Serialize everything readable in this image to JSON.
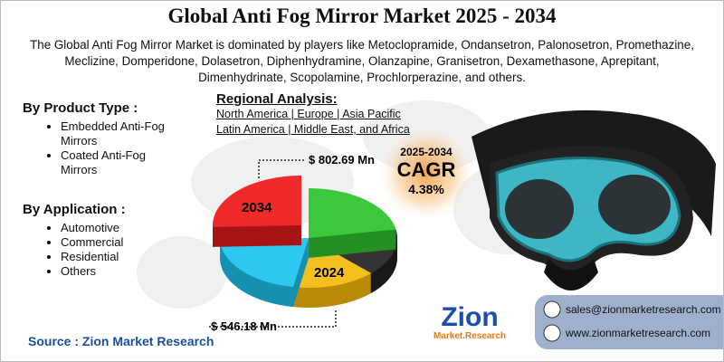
{
  "title": "Global Anti Fog Mirror Market 2025 - 2034",
  "description": "The Global Anti Fog Mirror Market is dominated by players like Metoclopramide, Ondansetron, Palonosetron, Promethazine, Meclizine, Domperidone, Dolasetron, Diphenhydramine, Olanzapine, Granisetron, Dexamethasone, Aprepitant, Dimenhydrinate, Scopolamine, Prochlorperazine, and others.",
  "product_type": {
    "heading": "By Product Type  :",
    "items": [
      "Embedded Anti-Fog Mirrors",
      "Coated Anti-Fog Mirrors"
    ]
  },
  "application": {
    "heading": "By Application :",
    "items": [
      "Automotive",
      "Commercial",
      "Residential",
      "Others"
    ]
  },
  "regional": {
    "heading": "Regional Analysis:",
    "lines": [
      "North America | Europe | Asia Pacific",
      "Latin America | Middle East, and Africa"
    ]
  },
  "pie": {
    "label_2034": "2034",
    "value_2034": "$ 802.69 Mn",
    "label_2024": "2024",
    "value_2024": "$ 546.18 Mn"
  },
  "cagr": {
    "period": "2025-2034",
    "label": "CAGR",
    "value": "4.38%"
  },
  "source": "Source : Zion Market Research",
  "logo": {
    "name": "Zion",
    "sub": "Market.Research"
  },
  "contact": {
    "email": "sales@zionmarketresearch.com",
    "website": "www.zionmarketresearch.com"
  }
}
